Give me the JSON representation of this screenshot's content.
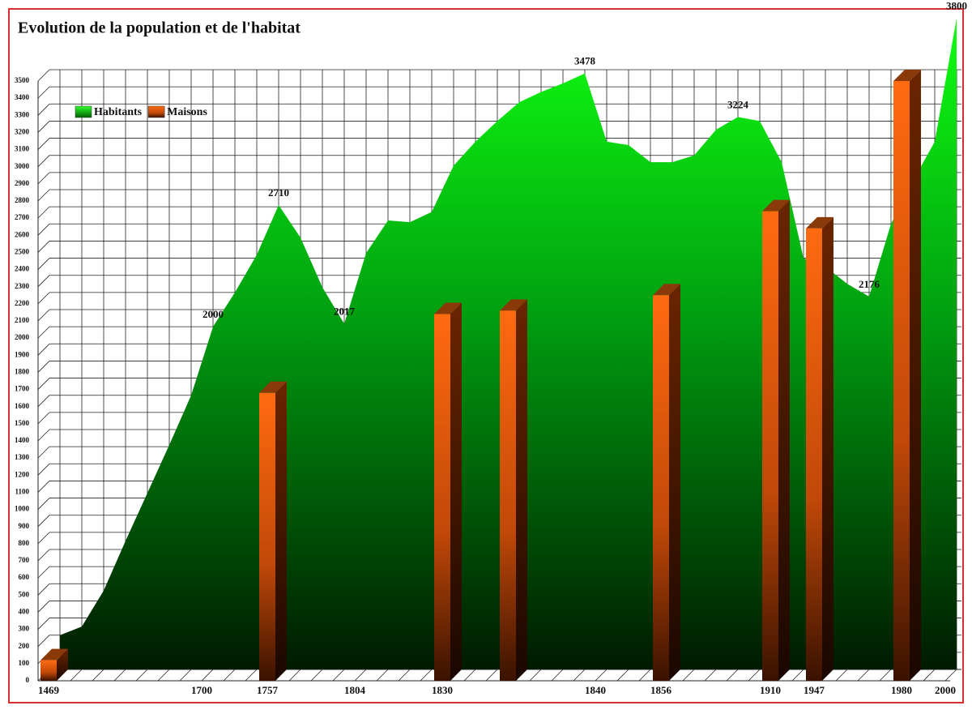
{
  "chart_data": {
    "type": "area_bar",
    "title": "Evolution de la population et de l'habitat",
    "categories": [
      "1469",
      null,
      null,
      null,
      null,
      null,
      null,
      "1700",
      null,
      null,
      "1757",
      null,
      null,
      null,
      "1804",
      null,
      null,
      null,
      "1830",
      null,
      null,
      null,
      null,
      null,
      null,
      "1840",
      null,
      null,
      "1856",
      null,
      null,
      null,
      null,
      "1910",
      null,
      "1947",
      null,
      null,
      null,
      "1980",
      null,
      "2000"
    ],
    "series": [
      {
        "name": "Habitants",
        "type": "area",
        "color": "#00e010",
        "values": [
          200,
          250,
          460,
          750,
          1030,
          1310,
          1600,
          2000,
          2200,
          2420,
          2710,
          2520,
          2230,
          2017,
          2430,
          2620,
          2610,
          2670,
          2940,
          3080,
          3200,
          3310,
          3370,
          3420,
          3478,
          3080,
          3060,
          2960,
          2960,
          3000,
          3150,
          3224,
          3200,
          2960,
          2400,
          2350,
          2250,
          2176,
          2600,
          2850,
          3080,
          3800
        ],
        "value_labels": [
          null,
          null,
          null,
          null,
          null,
          null,
          null,
          "2000",
          null,
          null,
          "2710",
          null,
          null,
          "2017",
          null,
          null,
          null,
          null,
          null,
          null,
          null,
          null,
          null,
          null,
          "3478",
          null,
          null,
          null,
          null,
          null,
          null,
          "3224",
          null,
          null,
          null,
          null,
          null,
          "2176",
          null,
          null,
          null,
          "3800"
        ]
      },
      {
        "name": "Maisons",
        "type": "bar",
        "color": "#ff6010",
        "values": [
          120,
          null,
          null,
          null,
          null,
          null,
          null,
          null,
          null,
          null,
          1680,
          null,
          null,
          null,
          null,
          null,
          null,
          null,
          2140,
          null,
          null,
          2160,
          null,
          null,
          null,
          null,
          null,
          null,
          2250,
          null,
          null,
          null,
          null,
          2740,
          null,
          2640,
          null,
          null,
          null,
          3500,
          null,
          null
        ]
      }
    ],
    "ylim": [
      0,
      3500
    ],
    "yticks": [
      0,
      100,
      200,
      300,
      400,
      500,
      600,
      700,
      800,
      900,
      1000,
      1100,
      1200,
      1300,
      1400,
      1500,
      1600,
      1700,
      1800,
      1900,
      2000,
      2100,
      2200,
      2300,
      2400,
      2500,
      2600,
      2700,
      2800,
      2900,
      3000,
      3100,
      3200,
      3300,
      3400,
      3500
    ],
    "grid": true,
    "legend": "top-left"
  }
}
